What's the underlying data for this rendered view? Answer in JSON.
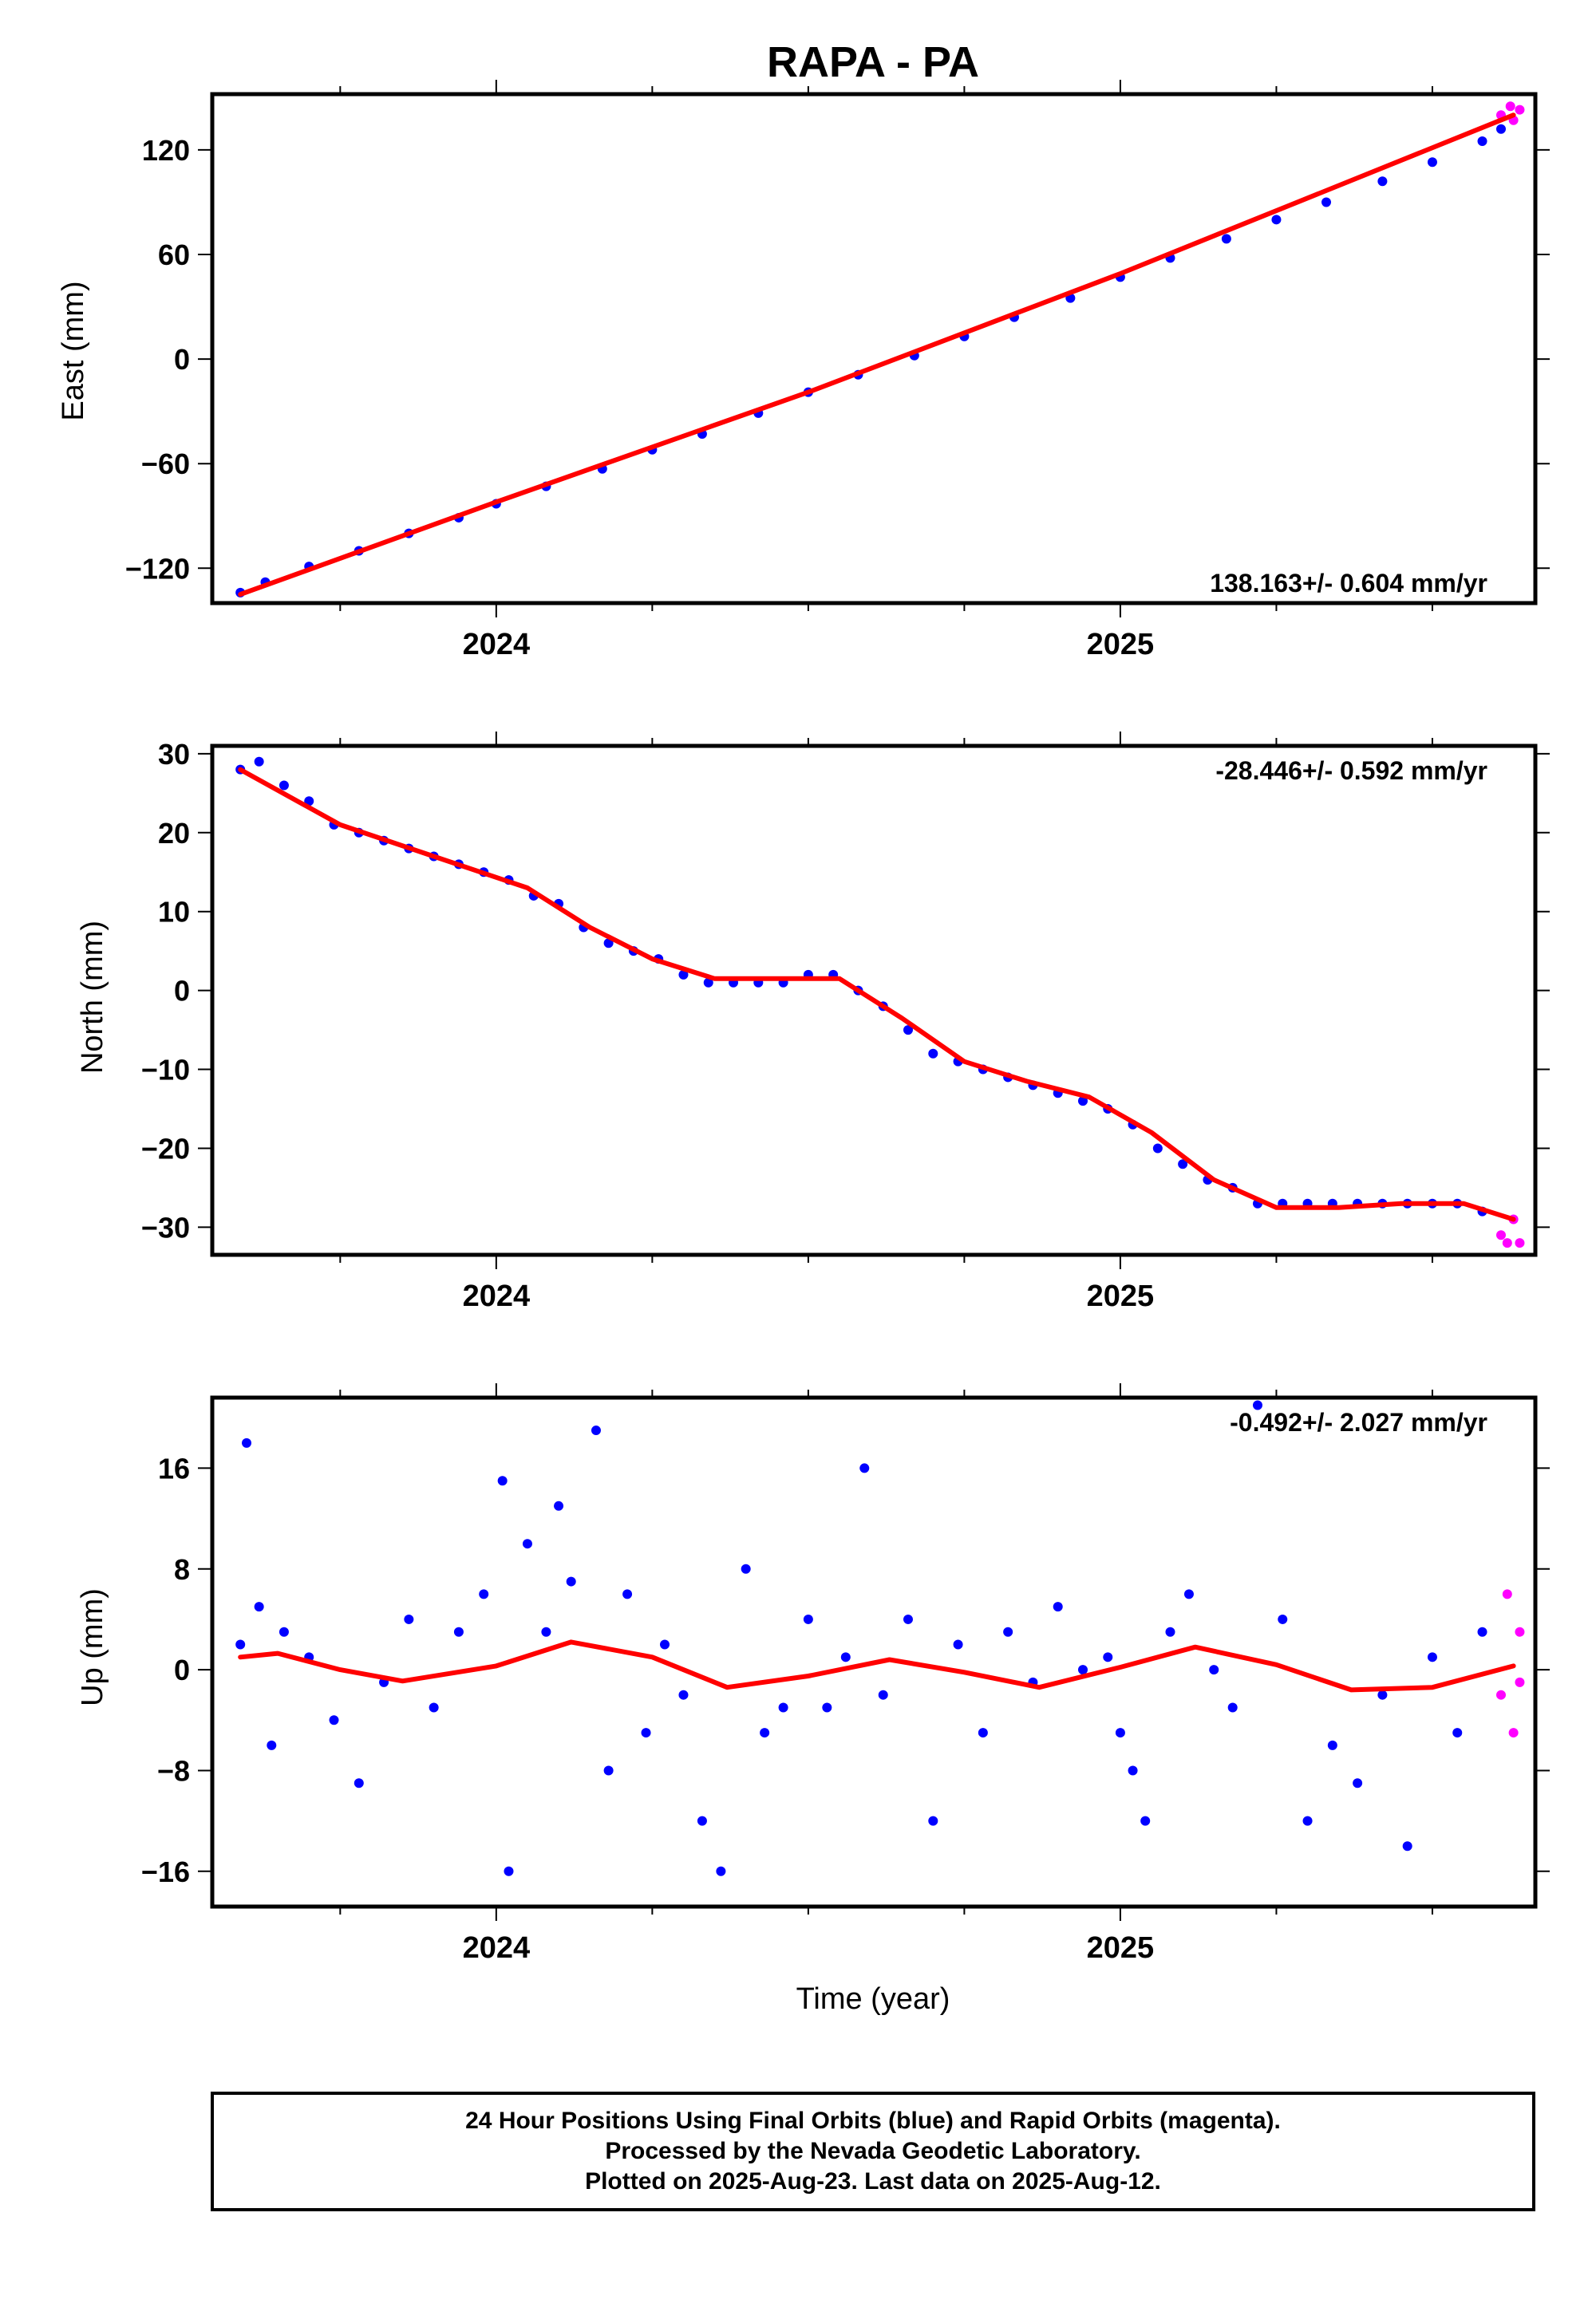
{
  "title": "RAPA - PA",
  "xlabel": "Time (year)",
  "caption": [
    "24 Hour Positions Using Final Orbits (blue) and Rapid Orbits (magenta).",
    "Processed by the Nevada Geodetic Laboratory.",
    "Plotted on 2025-Aug-23. Last data on 2025-Aug-12."
  ],
  "colors": {
    "final": "#0000ff",
    "rapid": "#ff00ff",
    "model": "#ff0000"
  },
  "chart_data": [
    {
      "type": "scatter",
      "name": "east",
      "ylabel": "East (mm)",
      "velocity_label": "138.163+/- 0.604 mm/yr",
      "xlim": [
        2023.545,
        2025.665
      ],
      "ylim": [
        -140,
        152
      ],
      "xticks": [
        2024,
        2025
      ],
      "xtick_labels": [
        "2024",
        "2025"
      ],
      "yticks": [
        -120,
        -60,
        0,
        60,
        120
      ],
      "ytick_labels": [
        "−120",
        "−60",
        "0",
        "60",
        "120"
      ],
      "final_points": [
        [
          2023.59,
          -134
        ],
        [
          2023.63,
          -128
        ],
        [
          2023.7,
          -119
        ],
        [
          2023.78,
          -110
        ],
        [
          2023.86,
          -100
        ],
        [
          2023.94,
          -91
        ],
        [
          2024.0,
          -83
        ],
        [
          2024.08,
          -73
        ],
        [
          2024.17,
          -63
        ],
        [
          2024.25,
          -52
        ],
        [
          2024.33,
          -43
        ],
        [
          2024.42,
          -31
        ],
        [
          2024.5,
          -19
        ],
        [
          2024.58,
          -9
        ],
        [
          2024.67,
          2
        ],
        [
          2024.75,
          13
        ],
        [
          2024.83,
          24
        ],
        [
          2024.92,
          35
        ],
        [
          2025.0,
          47
        ],
        [
          2025.08,
          58
        ],
        [
          2025.17,
          69
        ],
        [
          2025.25,
          80
        ],
        [
          2025.33,
          90
        ],
        [
          2025.42,
          102
        ],
        [
          2025.5,
          113
        ],
        [
          2025.58,
          125
        ],
        [
          2025.61,
          132
        ]
      ],
      "rapid_points": [
        [
          2025.61,
          140
        ],
        [
          2025.625,
          145
        ],
        [
          2025.63,
          137
        ],
        [
          2025.64,
          143
        ]
      ],
      "model_line": [
        [
          2023.59,
          -135
        ],
        [
          2024.0,
          -82
        ],
        [
          2024.5,
          -19
        ],
        [
          2025.0,
          49
        ],
        [
          2025.63,
          140
        ]
      ]
    },
    {
      "type": "scatter",
      "name": "north",
      "ylabel": "North (mm)",
      "velocity_label": "-28.446+/- 0.592 mm/yr",
      "xlim": [
        2023.545,
        2025.665
      ],
      "ylim": [
        -33.5,
        31
      ],
      "xticks": [
        2024,
        2025
      ],
      "xtick_labels": [
        "2024",
        "2025"
      ],
      "yticks": [
        -30,
        -20,
        -10,
        0,
        10,
        20,
        30
      ],
      "ytick_labels": [
        "−30",
        "−20",
        "−10",
        "0",
        "10",
        "20",
        "30"
      ],
      "final_points": [
        [
          2023.59,
          28
        ],
        [
          2023.62,
          29
        ],
        [
          2023.66,
          26
        ],
        [
          2023.7,
          24
        ],
        [
          2023.74,
          21
        ],
        [
          2023.78,
          20
        ],
        [
          2023.82,
          19
        ],
        [
          2023.86,
          18
        ],
        [
          2023.9,
          17
        ],
        [
          2023.94,
          16
        ],
        [
          2023.98,
          15
        ],
        [
          2024.02,
          14
        ],
        [
          2024.06,
          12
        ],
        [
          2024.1,
          11
        ],
        [
          2024.14,
          8
        ],
        [
          2024.18,
          6
        ],
        [
          2024.22,
          5
        ],
        [
          2024.26,
          4
        ],
        [
          2024.3,
          2
        ],
        [
          2024.34,
          1
        ],
        [
          2024.38,
          1
        ],
        [
          2024.42,
          1
        ],
        [
          2024.46,
          1
        ],
        [
          2024.5,
          2
        ],
        [
          2024.54,
          2
        ],
        [
          2024.58,
          0
        ],
        [
          2024.62,
          -2
        ],
        [
          2024.66,
          -5
        ],
        [
          2024.7,
          -8
        ],
        [
          2024.74,
          -9
        ],
        [
          2024.78,
          -10
        ],
        [
          2024.82,
          -11
        ],
        [
          2024.86,
          -12
        ],
        [
          2024.9,
          -13
        ],
        [
          2024.94,
          -14
        ],
        [
          2024.98,
          -15
        ],
        [
          2025.02,
          -17
        ],
        [
          2025.06,
          -20
        ],
        [
          2025.1,
          -22
        ],
        [
          2025.14,
          -24
        ],
        [
          2025.18,
          -25
        ],
        [
          2025.22,
          -27
        ],
        [
          2025.26,
          -27
        ],
        [
          2025.3,
          -27
        ],
        [
          2025.34,
          -27
        ],
        [
          2025.38,
          -27
        ],
        [
          2025.42,
          -27
        ],
        [
          2025.46,
          -27
        ],
        [
          2025.5,
          -27
        ],
        [
          2025.54,
          -27
        ],
        [
          2025.58,
          -28
        ]
      ],
      "rapid_points": [
        [
          2025.61,
          -31
        ],
        [
          2025.62,
          -32
        ],
        [
          2025.63,
          -29
        ],
        [
          2025.64,
          -32
        ]
      ],
      "model_line": [
        [
          2023.59,
          28
        ],
        [
          2023.75,
          21
        ],
        [
          2023.9,
          17
        ],
        [
          2024.05,
          13
        ],
        [
          2024.15,
          8
        ],
        [
          2024.25,
          4
        ],
        [
          2024.35,
          1.5
        ],
        [
          2024.45,
          1.5
        ],
        [
          2024.55,
          1.5
        ],
        [
          2024.65,
          -3.5
        ],
        [
          2024.75,
          -9
        ],
        [
          2024.85,
          -11.5
        ],
        [
          2024.95,
          -13.5
        ],
        [
          2025.05,
          -18
        ],
        [
          2025.15,
          -24
        ],
        [
          2025.25,
          -27.5
        ],
        [
          2025.35,
          -27.5
        ],
        [
          2025.45,
          -27
        ],
        [
          2025.55,
          -27
        ],
        [
          2025.63,
          -29
        ]
      ]
    },
    {
      "type": "scatter",
      "name": "up",
      "ylabel": "Up (mm)",
      "velocity_label": "-0.492+/- 2.027 mm/yr",
      "xlim": [
        2023.545,
        2025.665
      ],
      "ylim": [
        -18.8,
        21.6
      ],
      "xticks": [
        2024,
        2025
      ],
      "xtick_labels": [
        "2024",
        "2025"
      ],
      "yticks": [
        -16,
        -8,
        0,
        8,
        16
      ],
      "ytick_labels": [
        "−16",
        "−8",
        "0",
        "8",
        "16"
      ],
      "final_points": [
        [
          2023.59,
          2
        ],
        [
          2023.6,
          18
        ],
        [
          2023.62,
          5
        ],
        [
          2023.64,
          -6
        ],
        [
          2023.66,
          3
        ],
        [
          2023.7,
          1
        ],
        [
          2023.74,
          -4
        ],
        [
          2023.78,
          -9
        ],
        [
          2023.82,
          -1
        ],
        [
          2023.86,
          4
        ],
        [
          2023.9,
          -3
        ],
        [
          2023.94,
          3
        ],
        [
          2023.98,
          6
        ],
        [
          2024.01,
          15
        ],
        [
          2024.02,
          -16
        ],
        [
          2024.05,
          10
        ],
        [
          2024.08,
          3
        ],
        [
          2024.1,
          13
        ],
        [
          2024.12,
          7
        ],
        [
          2024.16,
          19
        ],
        [
          2024.18,
          -8
        ],
        [
          2024.21,
          6
        ],
        [
          2024.24,
          -5
        ],
        [
          2024.27,
          2
        ],
        [
          2024.3,
          -2
        ],
        [
          2024.33,
          -12
        ],
        [
          2024.36,
          -16
        ],
        [
          2024.4,
          8
        ],
        [
          2024.43,
          -5
        ],
        [
          2024.46,
          -3
        ],
        [
          2024.5,
          4
        ],
        [
          2024.53,
          -3
        ],
        [
          2024.56,
          1
        ],
        [
          2024.59,
          16
        ],
        [
          2024.62,
          -2
        ],
        [
          2024.66,
          4
        ],
        [
          2024.7,
          -12
        ],
        [
          2024.74,
          2
        ],
        [
          2024.78,
          -5
        ],
        [
          2024.82,
          3
        ],
        [
          2024.86,
          -1
        ],
        [
          2024.9,
          5
        ],
        [
          2024.94,
          0
        ],
        [
          2024.98,
          1
        ],
        [
          2025.0,
          -5
        ],
        [
          2025.02,
          -8
        ],
        [
          2025.04,
          -12
        ],
        [
          2025.08,
          3
        ],
        [
          2025.11,
          6
        ],
        [
          2025.15,
          0
        ],
        [
          2025.18,
          -3
        ],
        [
          2025.22,
          21
        ],
        [
          2025.26,
          4
        ],
        [
          2025.3,
          -12
        ],
        [
          2025.34,
          -6
        ],
        [
          2025.38,
          -9
        ],
        [
          2025.42,
          -2
        ],
        [
          2025.46,
          -14
        ],
        [
          2025.5,
          1
        ],
        [
          2025.54,
          -5
        ],
        [
          2025.58,
          3
        ]
      ],
      "rapid_points": [
        [
          2025.61,
          -2
        ],
        [
          2025.62,
          6
        ],
        [
          2025.63,
          -5
        ],
        [
          2025.64,
          3
        ],
        [
          2025.64,
          -1
        ]
      ],
      "model_line": [
        [
          2023.59,
          1
        ],
        [
          2023.65,
          1.3
        ],
        [
          2023.75,
          0
        ],
        [
          2023.85,
          -0.9
        ],
        [
          2024.0,
          0.3
        ],
        [
          2024.12,
          2.2
        ],
        [
          2024.25,
          1
        ],
        [
          2024.37,
          -1.4
        ],
        [
          2024.5,
          -0.5
        ],
        [
          2024.63,
          0.8
        ],
        [
          2024.75,
          -0.2
        ],
        [
          2024.87,
          -1.4
        ],
        [
          2025.0,
          0.2
        ],
        [
          2025.12,
          1.8
        ],
        [
          2025.25,
          0.4
        ],
        [
          2025.37,
          -1.6
        ],
        [
          2025.5,
          -1.4
        ],
        [
          2025.63,
          0.3
        ]
      ]
    }
  ]
}
